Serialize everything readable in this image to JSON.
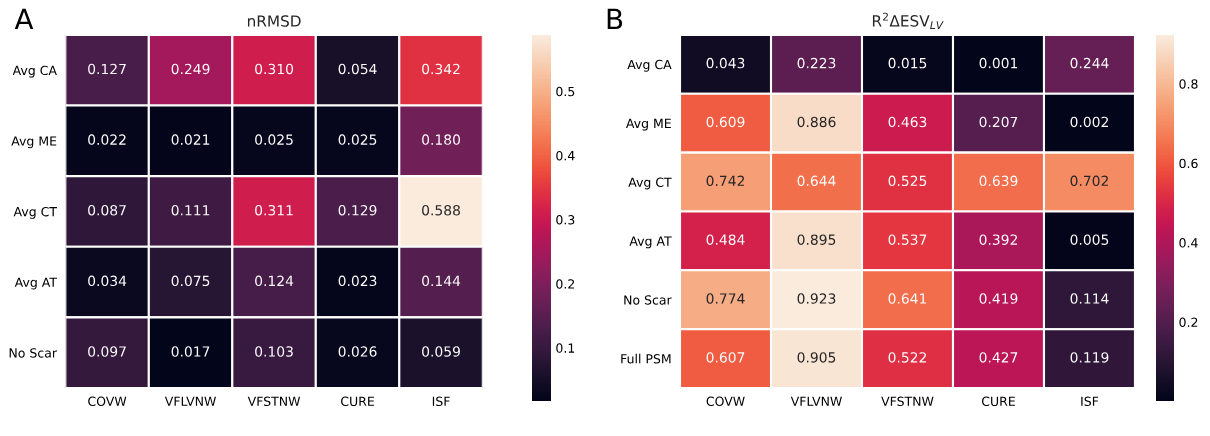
{
  "chart_data": [
    {
      "type": "heatmap",
      "title": "nRMSD",
      "annotations": [
        "A"
      ],
      "categories": [
        "COVW",
        "VFLVNW",
        "VFSTNW",
        "CURE",
        "ISF"
      ],
      "y_categories": [
        "Avg CA",
        "Avg ME",
        "Avg CT",
        "Avg AT",
        "No Scar"
      ],
      "cells": [
        [
          0.127,
          0.249,
          0.31,
          0.054,
          0.342
        ],
        [
          0.022,
          0.021,
          0.025,
          0.025,
          0.18
        ],
        [
          0.087,
          0.111,
          0.311,
          0.129,
          0.588
        ],
        [
          0.034,
          0.075,
          0.124,
          0.023,
          0.144
        ],
        [
          0.097,
          0.017,
          0.103,
          0.026,
          0.059
        ]
      ],
      "cell_labels": [
        [
          "0.127",
          "0.249",
          "0.310",
          "0.054",
          "0.342"
        ],
        [
          "0.022",
          "0.021",
          "0.025",
          "0.025",
          "0.180"
        ],
        [
          "0.087",
          "0.111",
          "0.311",
          "0.129",
          "0.588"
        ],
        [
          "0.034",
          "0.075",
          "0.124",
          "0.023",
          "0.144"
        ],
        [
          "0.097",
          "0.017",
          "0.103",
          "0.026",
          "0.059"
        ]
      ],
      "clim": [
        0.017,
        0.588
      ],
      "cticks": [
        0.1,
        0.2,
        0.3,
        0.4,
        0.5
      ]
    },
    {
      "type": "heatmap",
      "title": "R$^{2}$ΔESV$_{LV}$",
      "annotations": [
        "B"
      ],
      "categories": [
        "COVW",
        "VFLVNW",
        "VFSTNW",
        "CURE",
        "ISF"
      ],
      "y_categories": [
        "Avg CA",
        "Avg ME",
        "Avg CT",
        "Avg AT",
        "No Scar",
        "Full PSM"
      ],
      "cells": [
        [
          0.043,
          0.223,
          0.015,
          0.001,
          0.244
        ],
        [
          0.609,
          0.886,
          0.463,
          0.207,
          0.002
        ],
        [
          0.742,
          0.644,
          0.525,
          0.639,
          0.702
        ],
        [
          0.484,
          0.895,
          0.537,
          0.392,
          0.005
        ],
        [
          0.774,
          0.923,
          0.641,
          0.419,
          0.114
        ],
        [
          0.607,
          0.905,
          0.522,
          0.427,
          0.119
        ]
      ],
      "cell_labels": [
        [
          "0.043",
          "0.223",
          "0.015",
          "0.001",
          "0.244"
        ],
        [
          "0.609",
          "0.886",
          "0.463",
          "0.207",
          "0.002"
        ],
        [
          "0.742",
          "0.644",
          "0.525",
          "0.639",
          "0.702"
        ],
        [
          "0.484",
          "0.895",
          "0.537",
          "0.392",
          "0.005"
        ],
        [
          "0.774",
          "0.923",
          "0.641",
          "0.419",
          "0.114"
        ],
        [
          "0.607",
          "0.905",
          "0.522",
          "0.427",
          "0.119"
        ]
      ],
      "clim": [
        0.001,
        0.923
      ],
      "cticks": [
        0.2,
        0.4,
        0.6,
        0.8
      ]
    }
  ]
}
